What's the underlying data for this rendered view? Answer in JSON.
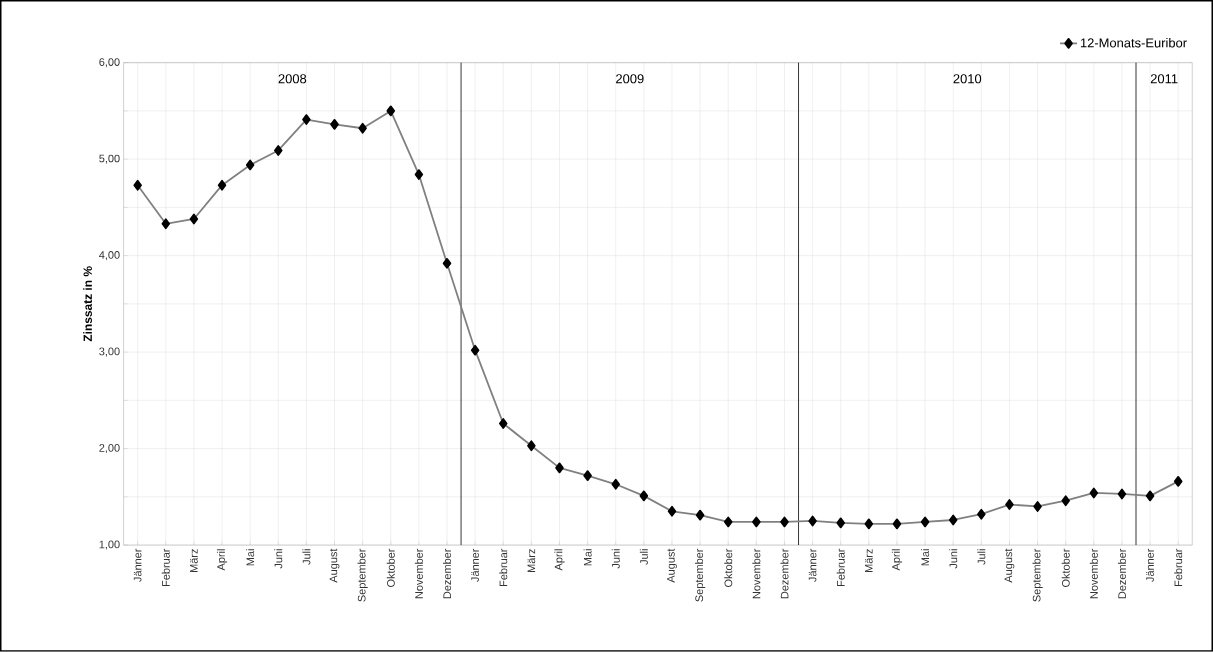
{
  "chart_data": {
    "type": "line",
    "ylabel": "Zinssatz in %",
    "categories": [
      "Jänner",
      "Februar",
      "März",
      "April",
      "Mai",
      "Juni",
      "Juli",
      "August",
      "September",
      "Oktober",
      "November",
      "Dezember",
      "Jänner",
      "Februar",
      "März",
      "April",
      "Mai",
      "Juni",
      "Juli",
      "August",
      "September",
      "Oktober",
      "November",
      "Dezember",
      "Jänner",
      "Februar",
      "März",
      "April",
      "Mai",
      "Juni",
      "Juli",
      "August",
      "September",
      "Oktober",
      "November",
      "Dezember",
      "Jänner",
      "Februar"
    ],
    "series": [
      {
        "name": "12-Monats-Euribor",
        "color": "#808080",
        "values": [
          4.73,
          4.33,
          4.38,
          4.73,
          4.94,
          5.09,
          5.41,
          5.36,
          5.32,
          5.5,
          4.84,
          3.92,
          3.02,
          2.26,
          2.03,
          1.8,
          1.72,
          1.63,
          1.51,
          1.35,
          1.31,
          1.24,
          1.24,
          1.24,
          1.25,
          1.23,
          1.22,
          1.22,
          1.24,
          1.26,
          1.32,
          1.42,
          1.4,
          1.46,
          1.54,
          1.53,
          1.51,
          1.66
        ]
      }
    ],
    "ylim": [
      1,
      6
    ],
    "yticks": [
      {
        "value": 1,
        "label": "1,00"
      },
      {
        "value": 1.5,
        "label": null
      },
      {
        "value": 2,
        "label": "2,00"
      },
      {
        "value": 2.5,
        "label": null
      },
      {
        "value": 3,
        "label": "3,00"
      },
      {
        "value": 3.5,
        "label": null
      },
      {
        "value": 4,
        "label": "4,00"
      },
      {
        "value": 4.5,
        "label": null
      },
      {
        "value": 5,
        "label": "5,00"
      },
      {
        "value": 5.5,
        "label": null
      },
      {
        "value": 6,
        "label": "6,00"
      }
    ],
    "annotations": [
      "2008",
      "2009",
      "2010",
      "2011"
    ],
    "grid": true,
    "legend": "top right",
    "marker": "diamond",
    "line_style": "solid"
  }
}
